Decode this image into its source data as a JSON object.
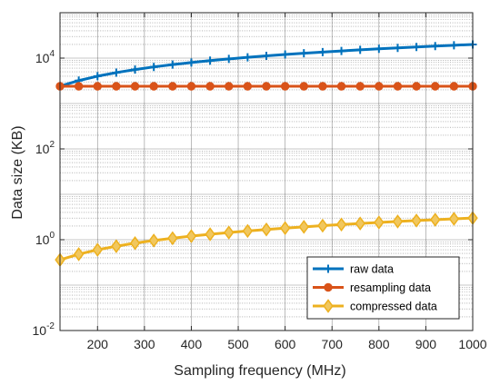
{
  "chart_data": {
    "type": "line",
    "title": "",
    "xlabel": "Sampling frequency (MHz)",
    "ylabel": "Data size (KB)",
    "xlim": [
      120,
      1000
    ],
    "ylim": [
      0.01,
      100000
    ],
    "yscale": "log",
    "grid": true,
    "legend_position": "bottom-right",
    "x_ticks": [
      {
        "value": 200,
        "label": "200"
      },
      {
        "value": 300,
        "label": "300"
      },
      {
        "value": 400,
        "label": "400"
      },
      {
        "value": 500,
        "label": "500"
      },
      {
        "value": 600,
        "label": "600"
      },
      {
        "value": 700,
        "label": "700"
      },
      {
        "value": 800,
        "label": "800"
      },
      {
        "value": 900,
        "label": "900"
      },
      {
        "value": 1000,
        "label": "1000"
      }
    ],
    "y_ticks": [
      {
        "value": 0.01,
        "base": "10",
        "exp": "-2"
      },
      {
        "value": 1,
        "base": "10",
        "exp": "0"
      },
      {
        "value": 100,
        "base": "10",
        "exp": "2"
      },
      {
        "value": 10000,
        "base": "10",
        "exp": "4"
      }
    ],
    "x": [
      120,
      160,
      200,
      240,
      280,
      320,
      360,
      400,
      440,
      480,
      520,
      560,
      600,
      640,
      680,
      720,
      760,
      800,
      840,
      880,
      920,
      960,
      1000
    ],
    "series": [
      {
        "name": "raw data",
        "color": "#0072bd",
        "marker": "plus",
        "values": [
          2400,
          3200,
          4000,
          4800,
          5600,
          6400,
          7200,
          8000,
          8800,
          9600,
          10400,
          11200,
          12000,
          12800,
          13600,
          14400,
          15200,
          16000,
          16800,
          17600,
          18400,
          19200,
          20000
        ]
      },
      {
        "name": "resampling data",
        "color": "#d95319",
        "marker": "circle",
        "values": [
          2400,
          2400,
          2400,
          2400,
          2400,
          2400,
          2400,
          2400,
          2400,
          2400,
          2400,
          2400,
          2400,
          2400,
          2400,
          2400,
          2400,
          2400,
          2400,
          2400,
          2400,
          2400,
          2400
        ]
      },
      {
        "name": "compressed data",
        "color": "#edb120",
        "marker": "diamond",
        "values": [
          0.36,
          0.48,
          0.6,
          0.72,
          0.84,
          0.96,
          1.08,
          1.2,
          1.32,
          1.44,
          1.56,
          1.68,
          1.8,
          1.92,
          2.04,
          2.16,
          2.28,
          2.4,
          2.52,
          2.64,
          2.76,
          2.88,
          3.0
        ]
      }
    ]
  }
}
